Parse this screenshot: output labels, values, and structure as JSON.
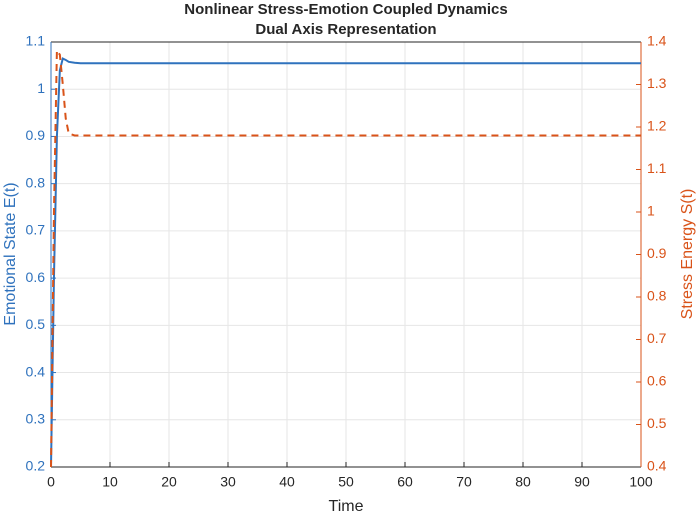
{
  "chart_data": {
    "type": "line",
    "title": "Nonlinear Stress-Emotion Coupled Dynamics",
    "subtitle": "Dual Axis Representation",
    "x_label": "Time",
    "y_label": "Emotional State E(t)",
    "y2_label": "Stress Energy S(t)",
    "x": [
      0,
      0.5,
      1,
      1.5,
      2,
      2.5,
      3,
      4,
      5,
      7,
      10,
      20,
      30,
      40,
      50,
      60,
      70,
      80,
      90,
      100
    ],
    "series": [
      {
        "color": "#2f72bd",
        "style": "solid",
        "values": [
          0.2,
          0.6,
          0.9,
          1.04,
          1.065,
          1.062,
          1.058,
          1.056,
          1.055,
          1.055,
          1.055,
          1.055,
          1.055,
          1.055,
          1.055,
          1.055,
          1.055,
          1.055,
          1.055,
          1.055
        ]
      },
      {
        "color": "#d95319",
        "style": "dashed",
        "axis": "y2",
        "values": [
          0.4,
          1.0,
          1.38,
          1.37,
          1.3,
          1.22,
          1.185,
          1.18,
          1.18,
          1.18,
          1.18,
          1.18,
          1.18,
          1.18,
          1.18,
          1.18,
          1.18,
          1.18,
          1.18,
          1.18
        ]
      }
    ],
    "xlim": [
      0,
      100
    ],
    "xticks": [
      0,
      10,
      20,
      30,
      40,
      50,
      60,
      70,
      80,
      90,
      100
    ],
    "ylim": [
      0.2,
      1.1
    ],
    "yticks": [
      0.2,
      0.3,
      0.4,
      0.5,
      0.6,
      0.7,
      0.8,
      0.9,
      1,
      1.1
    ],
    "y2lim": [
      0.4,
      1.4
    ],
    "y2ticks": [
      0.4,
      0.5,
      0.6,
      0.7,
      0.8,
      0.9,
      1,
      1.1,
      1.2,
      1.3,
      1.4
    ],
    "grid": true
  }
}
